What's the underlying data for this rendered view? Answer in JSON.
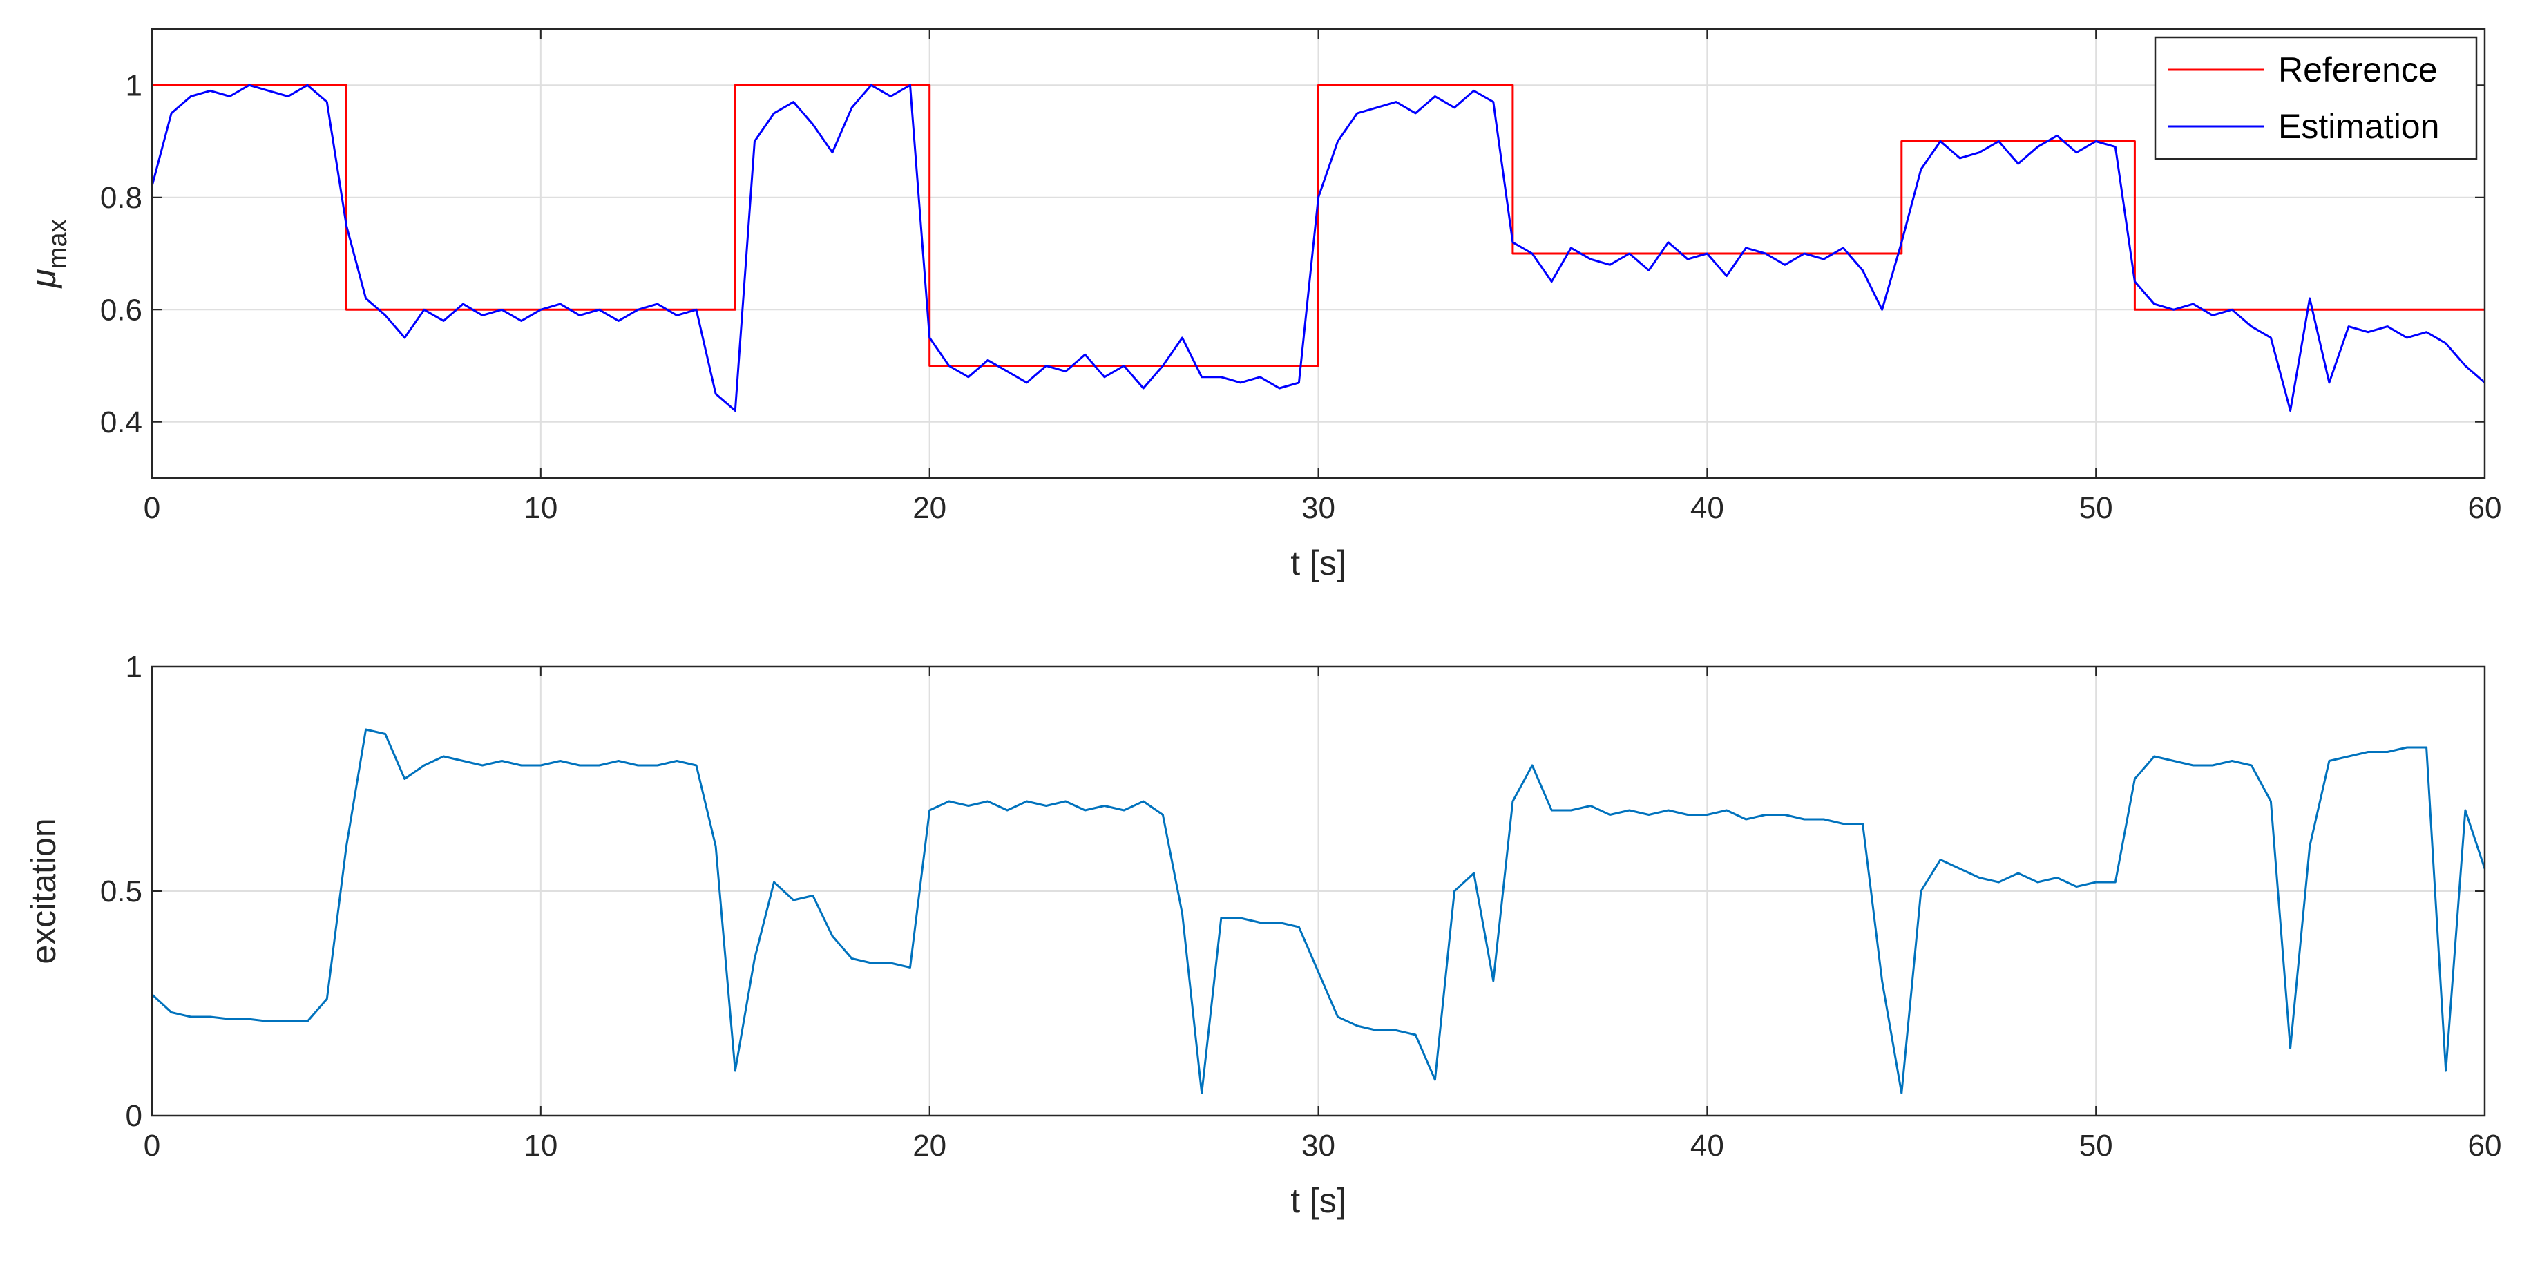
{
  "chart_data": [
    {
      "type": "line",
      "x": [
        0,
        0.5,
        1,
        1.5,
        2,
        2.5,
        3,
        3.5,
        4,
        4.5,
        5,
        5.5,
        6,
        6.5,
        7,
        7.5,
        8,
        8.5,
        9,
        9.5,
        10,
        10.5,
        11,
        11.5,
        12,
        12.5,
        13,
        13.5,
        14,
        14.5,
        15,
        15.5,
        16,
        16.5,
        17,
        17.5,
        18,
        18.5,
        19,
        19.5,
        20,
        20.5,
        21,
        21.5,
        22,
        22.5,
        23,
        23.5,
        24,
        24.5,
        25,
        25.5,
        26,
        26.5,
        27,
        27.5,
        28,
        28.5,
        29,
        29.5,
        30,
        30.5,
        31,
        31.5,
        32,
        32.5,
        33,
        33.5,
        34,
        34.5,
        35,
        35.5,
        36,
        36.5,
        37,
        37.5,
        38,
        38.5,
        39,
        39.5,
        40,
        40.5,
        41,
        41.5,
        42,
        42.5,
        43,
        43.5,
        44,
        44.5,
        45,
        45.5,
        46,
        46.5,
        47,
        47.5,
        48,
        48.5,
        49,
        49.5,
        50,
        50.5,
        51,
        51.5,
        52,
        52.5,
        53,
        53.5,
        54,
        54.5,
        55,
        55.5,
        56,
        56.5,
        57,
        57.5,
        58,
        58.5,
        59,
        59.5,
        60
      ],
      "series": [
        {
          "name": "Reference",
          "color": "#ff0000",
          "x": [
            0,
            5,
            5,
            15,
            15,
            20,
            20,
            30,
            30,
            35,
            35,
            45,
            45,
            51,
            51,
            60
          ],
          "values": [
            1,
            1,
            0.6,
            0.6,
            1,
            1,
            0.5,
            0.5,
            1,
            1,
            0.7,
            0.7,
            0.9,
            0.9,
            0.6,
            0.6
          ]
        },
        {
          "name": "Estimation",
          "color": "#0000ff",
          "values": [
            0.82,
            0.95,
            0.98,
            0.99,
            0.98,
            1.0,
            0.99,
            0.98,
            1.0,
            0.97,
            0.75,
            0.62,
            0.59,
            0.55,
            0.6,
            0.58,
            0.61,
            0.59,
            0.6,
            0.58,
            0.6,
            0.61,
            0.59,
            0.6,
            0.58,
            0.6,
            0.61,
            0.59,
            0.6,
            0.45,
            0.42,
            0.9,
            0.95,
            0.97,
            0.93,
            0.88,
            0.96,
            1.0,
            0.98,
            1.0,
            0.55,
            0.5,
            0.48,
            0.51,
            0.49,
            0.47,
            0.5,
            0.49,
            0.52,
            0.48,
            0.5,
            0.46,
            0.5,
            0.55,
            0.48,
            0.48,
            0.47,
            0.48,
            0.46,
            0.47,
            0.8,
            0.9,
            0.95,
            0.96,
            0.97,
            0.95,
            0.98,
            0.96,
            0.99,
            0.97,
            0.72,
            0.7,
            0.65,
            0.71,
            0.69,
            0.68,
            0.7,
            0.67,
            0.72,
            0.69,
            0.7,
            0.66,
            0.71,
            0.7,
            0.68,
            0.7,
            0.69,
            0.71,
            0.67,
            0.6,
            0.72,
            0.85,
            0.9,
            0.87,
            0.88,
            0.9,
            0.86,
            0.89,
            0.91,
            0.88,
            0.9,
            0.89,
            0.65,
            0.61,
            0.6,
            0.61,
            0.59,
            0.6,
            0.57,
            0.55,
            0.42,
            0.62,
            0.47,
            0.57,
            0.56,
            0.57,
            0.55,
            0.56,
            0.54,
            0.5,
            0.47
          ]
        }
      ],
      "xlabel": "t [s]",
      "ylabel": "μ",
      "ylabel_subscript": "max",
      "xlim": [
        0,
        60
      ],
      "xticks": [
        0,
        10,
        20,
        30,
        40,
        50,
        60
      ],
      "ylim": [
        0.3,
        1.1
      ],
      "yticks": [
        0.4,
        0.6,
        0.8,
        1
      ],
      "grid": true,
      "legend": "upper-right"
    },
    {
      "type": "line",
      "x": [
        0,
        0.5,
        1,
        1.5,
        2,
        2.5,
        3,
        3.5,
        4,
        4.5,
        5,
        5.5,
        6,
        6.5,
        7,
        7.5,
        8,
        8.5,
        9,
        9.5,
        10,
        10.5,
        11,
        11.5,
        12,
        12.5,
        13,
        13.5,
        14,
        14.5,
        15,
        15.5,
        16,
        16.5,
        17,
        17.5,
        18,
        18.5,
        19,
        19.5,
        20,
        20.5,
        21,
        21.5,
        22,
        22.5,
        23,
        23.5,
        24,
        24.5,
        25,
        25.5,
        26,
        26.5,
        27,
        27.5,
        28,
        28.5,
        29,
        29.5,
        30,
        30.5,
        31,
        31.5,
        32,
        32.5,
        33,
        33.5,
        34,
        34.5,
        35,
        35.5,
        36,
        36.5,
        37,
        37.5,
        38,
        38.5,
        39,
        39.5,
        40,
        40.5,
        41,
        41.5,
        42,
        42.5,
        43,
        43.5,
        44,
        44.5,
        45,
        45.5,
        46,
        46.5,
        47,
        47.5,
        48,
        48.5,
        49,
        49.5,
        50,
        50.5,
        51,
        51.5,
        52,
        52.5,
        53,
        53.5,
        54,
        54.5,
        55,
        55.5,
        56,
        56.5,
        57,
        57.5,
        58,
        58.5,
        59,
        59.5,
        60
      ],
      "series": [
        {
          "color": "#0072bd",
          "values": [
            0.27,
            0.23,
            0.22,
            0.22,
            0.215,
            0.215,
            0.21,
            0.21,
            0.21,
            0.26,
            0.6,
            0.86,
            0.85,
            0.75,
            0.78,
            0.8,
            0.79,
            0.78,
            0.79,
            0.78,
            0.78,
            0.79,
            0.78,
            0.78,
            0.79,
            0.78,
            0.78,
            0.79,
            0.78,
            0.6,
            0.1,
            0.35,
            0.52,
            0.48,
            0.49,
            0.4,
            0.35,
            0.34,
            0.34,
            0.33,
            0.68,
            0.7,
            0.69,
            0.7,
            0.68,
            0.7,
            0.69,
            0.7,
            0.68,
            0.69,
            0.68,
            0.7,
            0.67,
            0.45,
            0.05,
            0.44,
            0.44,
            0.43,
            0.43,
            0.42,
            0.32,
            0.22,
            0.2,
            0.19,
            0.19,
            0.18,
            0.08,
            0.5,
            0.54,
            0.3,
            0.7,
            0.78,
            0.68,
            0.68,
            0.69,
            0.67,
            0.68,
            0.67,
            0.68,
            0.67,
            0.67,
            0.68,
            0.66,
            0.67,
            0.67,
            0.66,
            0.66,
            0.65,
            0.65,
            0.3,
            0.05,
            0.5,
            0.57,
            0.55,
            0.53,
            0.52,
            0.54,
            0.52,
            0.53,
            0.51,
            0.52,
            0.52,
            0.75,
            0.8,
            0.79,
            0.78,
            0.78,
            0.79,
            0.78,
            0.7,
            0.15,
            0.6,
            0.79,
            0.8,
            0.81,
            0.81,
            0.82,
            0.82,
            0.1,
            0.68,
            0.55
          ]
        }
      ],
      "xlabel": "t [s]",
      "ylabel": "excitation",
      "xlim": [
        0,
        60
      ],
      "xticks": [
        0,
        10,
        20,
        30,
        40,
        50,
        60
      ],
      "ylim": [
        0,
        1
      ],
      "yticks": [
        0,
        0.5,
        1
      ],
      "grid": true
    }
  ]
}
